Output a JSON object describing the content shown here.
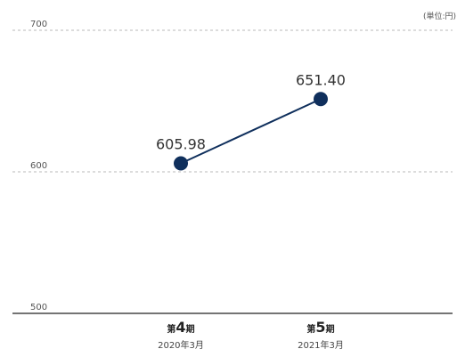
{
  "chart_data": {
    "type": "line",
    "unit_note": "(単位:円)",
    "categories": [
      {
        "prefix": "第",
        "num": "4",
        "suffix": "期",
        "date": "2020年3月"
      },
      {
        "prefix": "第",
        "num": "5",
        "suffix": "期",
        "date": "2021年3月"
      }
    ],
    "series": [
      {
        "values": [
          605.98,
          651.4
        ],
        "labels": [
          "605.98",
          "651.40"
        ],
        "color": "#0f2f5c"
      }
    ],
    "yticks": [
      500,
      600,
      700
    ],
    "ylim": [
      500,
      700
    ],
    "grid": "dashed-horizontal"
  }
}
